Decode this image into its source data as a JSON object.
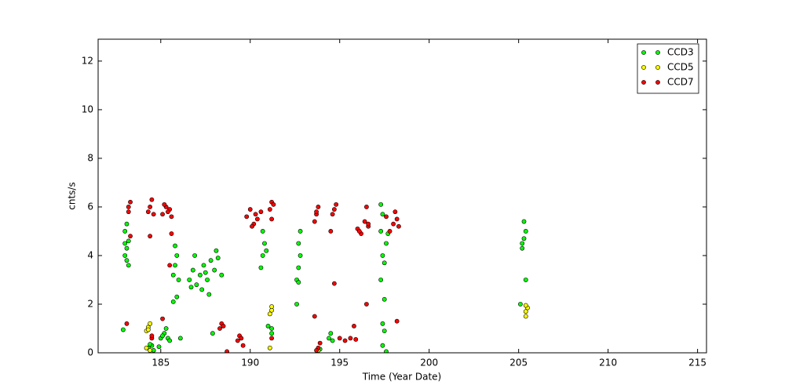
{
  "chart_data": {
    "type": "scatter",
    "x_label": "Time (Year Date)",
    "y_label": "cnts/s",
    "xlim": [
      181.5,
      215.5
    ],
    "ylim": [
      0,
      12.9
    ],
    "xticks": [
      185,
      190,
      195,
      200,
      205,
      210,
      215
    ],
    "yticks": [
      0,
      2,
      4,
      6,
      8,
      10,
      12
    ],
    "legend": "upper right",
    "series": [
      {
        "name": "CCD3",
        "color": "#00ff00",
        "x": [
          183.0,
          183.1,
          183.2,
          183.0,
          183.1,
          183.2,
          183.1,
          183.0,
          182.9,
          184.3,
          184.5,
          184.4,
          184.6,
          185.0,
          185.2,
          185.4,
          185.3,
          185.1,
          185.5,
          184.9,
          185.7,
          185.8,
          185.9,
          185.8,
          185.7,
          185.9,
          186.0,
          186.1,
          186.6,
          186.8,
          187.0,
          187.2,
          187.4,
          187.6,
          187.8,
          188.0,
          188.2,
          188.4,
          186.9,
          187.3,
          187.7,
          188.1,
          186.7,
          187.5,
          187.9,
          190.6,
          190.7,
          190.8,
          190.7,
          190.9,
          191.0,
          191.2,
          191.2,
          192.6,
          192.7,
          192.8,
          192.7,
          192.8,
          192.6,
          192.7,
          193.8,
          193.9,
          194.4,
          194.5,
          194.6,
          197.3,
          197.4,
          197.3,
          197.4,
          197.5,
          197.3,
          197.5,
          197.4,
          197.5,
          197.4,
          197.6,
          197.6,
          197.7,
          205.2,
          205.3,
          205.4,
          205.3,
          205.2,
          205.4,
          205.1
        ],
        "values": [
          4.0,
          4.3,
          4.6,
          5.0,
          5.3,
          3.6,
          3.8,
          4.5,
          0.95,
          0.2,
          0.3,
          0.35,
          0.1,
          0.6,
          0.8,
          0.6,
          1.0,
          0.7,
          0.5,
          0.25,
          3.2,
          3.6,
          4.0,
          4.4,
          2.1,
          2.3,
          3.0,
          0.6,
          3.0,
          3.4,
          2.8,
          3.2,
          3.6,
          3.0,
          3.8,
          3.4,
          3.9,
          3.2,
          4.0,
          2.6,
          2.4,
          4.2,
          2.7,
          3.3,
          0.8,
          3.5,
          4.0,
          4.5,
          5.0,
          4.2,
          1.1,
          0.8,
          1.0,
          3.0,
          3.5,
          4.0,
          4.5,
          5.0,
          2.0,
          2.9,
          0.1,
          0.15,
          0.6,
          0.8,
          0.5,
          6.1,
          5.7,
          5.0,
          4.0,
          3.7,
          3.0,
          2.2,
          1.2,
          0.9,
          0.3,
          0.05,
          4.5,
          4.9,
          4.3,
          4.7,
          5.0,
          5.4,
          4.5,
          3.0,
          2.0
        ]
      },
      {
        "name": "CCD5",
        "color": "#ffff00",
        "x": [
          184.2,
          184.3,
          184.4,
          184.3,
          184.2,
          184.4,
          191.1,
          191.2,
          191.2,
          191.1,
          205.4,
          205.4,
          205.5,
          205.4,
          193.8
        ],
        "values": [
          0.9,
          1.05,
          1.2,
          0.95,
          0.2,
          0.1,
          1.6,
          1.75,
          1.9,
          0.2,
          1.5,
          1.7,
          1.85,
          1.95,
          0.1
        ]
      },
      {
        "name": "CCD7",
        "color": "#ff0000",
        "x": [
          183.2,
          183.2,
          183.3,
          183.3,
          183.1,
          184.3,
          184.4,
          184.5,
          184.6,
          184.4,
          184.5,
          185.1,
          185.3,
          185.5,
          185.2,
          185.4,
          185.1,
          185.6,
          185.5,
          185.6,
          184.5,
          188.3,
          188.4,
          188.5,
          188.7,
          189.3,
          189.4,
          189.5,
          189.6,
          189.8,
          190.0,
          190.2,
          190.4,
          190.6,
          190.1,
          190.3,
          191.1,
          191.2,
          191.3,
          191.2,
          191.2,
          193.6,
          193.7,
          193.8,
          193.7,
          193.6,
          193.8,
          193.7,
          193.9,
          194.6,
          194.7,
          194.8,
          194.5,
          194.7,
          195.0,
          195.3,
          195.6,
          195.9,
          195.8,
          196.0,
          196.2,
          196.4,
          196.6,
          196.5,
          196.1,
          196.5,
          196.6,
          197.8,
          198.0,
          198.2,
          197.6,
          198.1,
          198.3,
          198.2
        ],
        "values": [
          5.8,
          6.0,
          6.2,
          4.8,
          1.2,
          5.8,
          6.0,
          6.3,
          5.7,
          4.8,
          0.6,
          5.7,
          6.0,
          5.9,
          6.1,
          5.8,
          1.4,
          4.9,
          3.6,
          5.6,
          0.7,
          1.0,
          1.2,
          1.1,
          0.05,
          0.5,
          0.7,
          0.6,
          0.3,
          5.6,
          5.9,
          5.3,
          5.5,
          5.8,
          5.2,
          5.7,
          5.9,
          6.2,
          6.1,
          5.5,
          0.6,
          5.4,
          5.7,
          6.0,
          5.8,
          1.5,
          0.2,
          0.1,
          0.4,
          5.7,
          5.9,
          6.1,
          5.0,
          2.85,
          0.6,
          0.5,
          0.6,
          0.55,
          1.1,
          5.1,
          4.9,
          5.4,
          5.2,
          6.0,
          5.0,
          2.0,
          5.3,
          5.0,
          5.3,
          5.5,
          5.6,
          5.8,
          5.2,
          1.3
        ]
      }
    ]
  }
}
